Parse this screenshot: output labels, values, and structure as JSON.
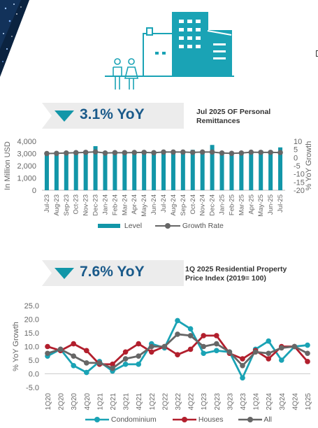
{
  "colors": {
    "teal": "#1296a8",
    "grey": "#666666",
    "red": "#b21f2d",
    "banner": "#ececec",
    "navy": "#1a5a8a"
  },
  "icons": [
    "skyline-icon",
    "people-icon",
    "checkbox-icon"
  ],
  "section1": {
    "badge": "3.1% YoY",
    "title_line1": "Jul 2025 OF Personal",
    "title_line2": "Remittances",
    "legend": {
      "level": "Level",
      "growth": "Growth Rate"
    }
  },
  "section2": {
    "badge": "7.6% YoY",
    "title_line1": "1Q 2025 Residential Property",
    "title_line2": "Price Index (2019= 100)",
    "legend": {
      "condo": "Condominium",
      "houses": "Houses",
      "all": "All"
    }
  },
  "chart_data": [
    {
      "type": "bar",
      "categories": [
        "Jul-23",
        "Aug-23",
        "Sep-23",
        "Oct-23",
        "Nov-23",
        "Dec-23",
        "Jan-24",
        "Feb-24",
        "Mar-24",
        "Apr-24",
        "May-24",
        "Jun-24",
        "Jul-24",
        "Aug-24",
        "Sep-24",
        "Oct-24",
        "Nov-24",
        "Dec-24",
        "Jan-25",
        "Feb-25",
        "Mar-25",
        "Apr-25",
        "May-25",
        "Jun-25",
        "Jul-25"
      ],
      "series": [
        {
          "name": "Level",
          "type": "bar",
          "axis": "left",
          "values": [
            3000,
            3000,
            3000,
            3100,
            3000,
            3600,
            3000,
            3000,
            3000,
            3050,
            3100,
            3100,
            3200,
            3150,
            3150,
            3300,
            3200,
            3700,
            3100,
            3100,
            3100,
            3200,
            3250,
            3200,
            3500
          ]
        },
        {
          "name": "Growth Rate",
          "type": "line",
          "axis": "right",
          "values": [
            2.5,
            2.6,
            2.8,
            3.0,
            3.2,
            3.5,
            2.8,
            3.0,
            3.0,
            3.1,
            3.2,
            3.0,
            3.4,
            3.4,
            3.4,
            3.2,
            3.4,
            3.4,
            2.8,
            2.6,
            2.8,
            3.3,
            3.2,
            3.2,
            3.1
          ]
        }
      ],
      "ylabel": "In Million USD",
      "ylabel_right": "% YoY Growth",
      "ylim": [
        0,
        4000
      ],
      "yticks": [
        "4,000",
        "3,000",
        "2,000",
        "1,000",
        "0"
      ],
      "ytick_values": [
        4000,
        3000,
        2000,
        1000,
        0
      ],
      "ylim_right": [
        -20,
        10
      ],
      "yticks_right": [
        10,
        5,
        0,
        -5,
        -10,
        -15,
        -20
      ],
      "legend_position": "bottom"
    },
    {
      "type": "line",
      "categories": [
        "1Q20",
        "2Q20",
        "3Q20",
        "4Q20",
        "1Q21",
        "2Q21",
        "3Q21",
        "4Q21",
        "1Q22",
        "2Q22",
        "3Q22",
        "4Q22",
        "1Q23",
        "2Q23",
        "3Q23",
        "4Q23",
        "1Q24",
        "2Q24",
        "3Q24",
        "4Q24",
        "1Q25"
      ],
      "series": [
        {
          "name": "Condominium",
          "values": [
            6.5,
            9.0,
            3.0,
            0.5,
            4.5,
            1.0,
            3.5,
            3.5,
            11.0,
            9.5,
            19.5,
            16.5,
            7.5,
            8.5,
            8.0,
            -1.5,
            9.0,
            12.0,
            5.0,
            10.0,
            10.5
          ]
        },
        {
          "name": "Houses",
          "values": [
            10.0,
            8.5,
            11.0,
            8.5,
            3.5,
            3.5,
            8.0,
            11.0,
            8.0,
            10.0,
            7.0,
            9.0,
            14.0,
            14.0,
            7.5,
            5.5,
            8.5,
            5.5,
            10.0,
            10.0,
            4.5
          ]
        },
        {
          "name": "All",
          "values": [
            7.5,
            9.0,
            6.5,
            4.0,
            4.0,
            2.0,
            5.5,
            6.5,
            10.0,
            10.0,
            14.5,
            14.0,
            10.0,
            11.0,
            8.0,
            3.0,
            8.0,
            7.5,
            9.5,
            10.0,
            7.5
          ]
        }
      ],
      "ylabel": "% YoY Growth",
      "ylim": [
        -5,
        25
      ],
      "yticks": [
        "25.0",
        "20.0",
        "15.0",
        "10.0",
        "5.0",
        "0.0",
        "-5.0"
      ],
      "ytick_values": [
        25,
        20,
        15,
        10,
        5,
        0,
        -5
      ],
      "legend_position": "bottom"
    }
  ]
}
